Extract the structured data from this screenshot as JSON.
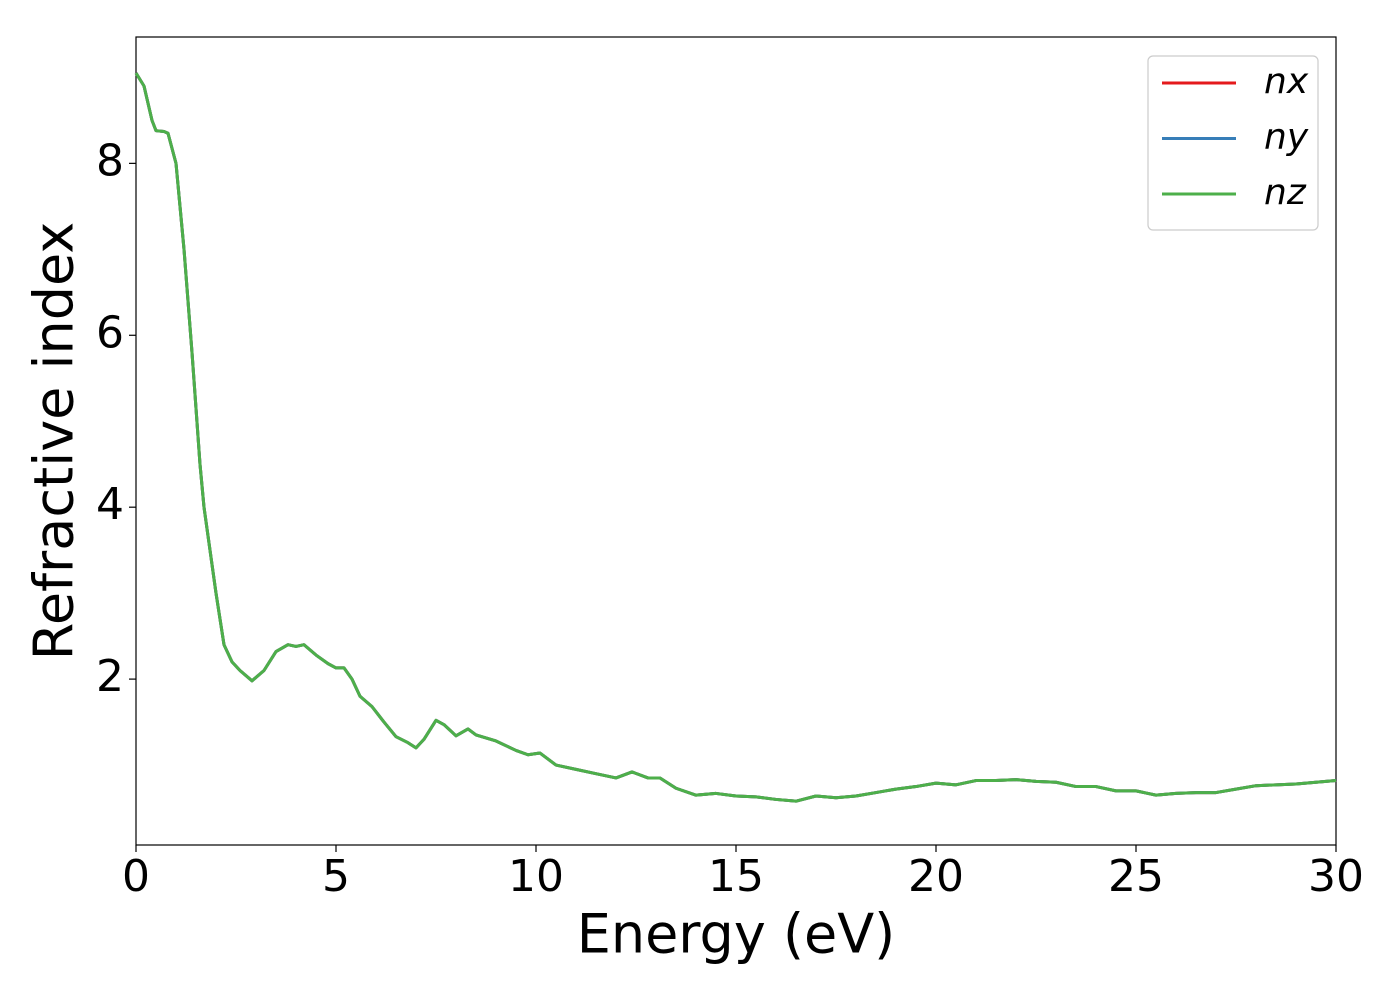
{
  "chart_data": {
    "type": "line",
    "xlabel": "Energy (eV)",
    "ylabel": "Refractive index",
    "x": [
      0,
      0.2,
      0.4,
      0.5,
      0.7,
      0.8,
      1.0,
      1.2,
      1.4,
      1.6,
      1.7,
      2.0,
      2.2,
      2.4,
      2.6,
      2.9,
      3.2,
      3.5,
      3.8,
      4.0,
      4.2,
      4.5,
      4.8,
      5.0,
      5.2,
      5.4,
      5.6,
      5.9,
      6.2,
      6.5,
      6.8,
      7.0,
      7.2,
      7.5,
      7.7,
      8.0,
      8.3,
      8.5,
      9.0,
      9.5,
      9.8,
      10.1,
      10.5,
      11,
      11.5,
      12,
      12.4,
      12.8,
      13.1,
      13.5,
      14,
      14.5,
      15,
      15.5,
      16,
      16.5,
      17,
      17.5,
      18,
      18.5,
      19,
      19.5,
      20,
      20.5,
      21,
      21.5,
      22,
      22.5,
      23,
      23.5,
      24,
      24.5,
      25,
      25.5,
      26,
      26.5,
      27,
      27.5,
      28,
      28.5,
      29,
      29.5,
      30
    ],
    "series": [
      {
        "name": "nx",
        "color": "#e41a1c",
        "values": [
          9.05,
          8.9,
          8.5,
          8.38,
          8.37,
          8.35,
          8.0,
          7.0,
          5.8,
          4.5,
          4.0,
          3.0,
          2.4,
          2.2,
          2.1,
          1.98,
          2.1,
          2.32,
          2.4,
          2.38,
          2.4,
          2.28,
          2.18,
          2.13,
          2.13,
          2.0,
          1.8,
          1.68,
          1.5,
          1.33,
          1.26,
          1.2,
          1.3,
          1.52,
          1.47,
          1.34,
          1.42,
          1.35,
          1.28,
          1.17,
          1.12,
          1.14,
          1.0,
          0.95,
          0.9,
          0.85,
          0.92,
          0.85,
          0.85,
          0.73,
          0.65,
          0.67,
          0.64,
          0.63,
          0.6,
          0.58,
          0.64,
          0.62,
          0.64,
          0.68,
          0.72,
          0.75,
          0.79,
          0.77,
          0.82,
          0.82,
          0.83,
          0.81,
          0.8,
          0.75,
          0.75,
          0.7,
          0.7,
          0.65,
          0.67,
          0.68,
          0.68,
          0.72,
          0.76,
          0.77,
          0.78,
          0.8,
          0.82
        ]
      },
      {
        "name": "ny",
        "color": "#377eb8",
        "values": [
          9.05,
          8.9,
          8.5,
          8.38,
          8.37,
          8.35,
          8.0,
          7.0,
          5.8,
          4.5,
          4.0,
          3.0,
          2.4,
          2.2,
          2.1,
          1.98,
          2.1,
          2.32,
          2.4,
          2.38,
          2.4,
          2.28,
          2.18,
          2.13,
          2.13,
          2.0,
          1.8,
          1.68,
          1.5,
          1.33,
          1.26,
          1.2,
          1.3,
          1.52,
          1.47,
          1.34,
          1.42,
          1.35,
          1.28,
          1.17,
          1.12,
          1.14,
          1.0,
          0.95,
          0.9,
          0.85,
          0.92,
          0.85,
          0.85,
          0.73,
          0.65,
          0.67,
          0.64,
          0.63,
          0.6,
          0.58,
          0.64,
          0.62,
          0.64,
          0.68,
          0.72,
          0.75,
          0.79,
          0.77,
          0.82,
          0.82,
          0.83,
          0.81,
          0.8,
          0.75,
          0.75,
          0.7,
          0.7,
          0.65,
          0.67,
          0.68,
          0.68,
          0.72,
          0.76,
          0.77,
          0.78,
          0.8,
          0.82
        ]
      },
      {
        "name": "nz",
        "color": "#4daf4a",
        "values": [
          9.05,
          8.9,
          8.5,
          8.38,
          8.37,
          8.35,
          8.0,
          7.0,
          5.8,
          4.5,
          4.0,
          3.0,
          2.4,
          2.2,
          2.1,
          1.98,
          2.1,
          2.32,
          2.4,
          2.38,
          2.4,
          2.28,
          2.18,
          2.13,
          2.13,
          2.0,
          1.8,
          1.68,
          1.5,
          1.33,
          1.26,
          1.2,
          1.3,
          1.52,
          1.47,
          1.34,
          1.42,
          1.35,
          1.28,
          1.17,
          1.12,
          1.14,
          1.0,
          0.95,
          0.9,
          0.85,
          0.92,
          0.85,
          0.85,
          0.73,
          0.65,
          0.67,
          0.64,
          0.63,
          0.6,
          0.58,
          0.64,
          0.62,
          0.64,
          0.68,
          0.72,
          0.75,
          0.79,
          0.77,
          0.82,
          0.82,
          0.83,
          0.81,
          0.8,
          0.75,
          0.75,
          0.7,
          0.7,
          0.65,
          0.67,
          0.68,
          0.68,
          0.72,
          0.76,
          0.77,
          0.78,
          0.8,
          0.82
        ]
      }
    ],
    "xlim": [
      0,
      30
    ],
    "xticks": [
      0,
      5,
      10,
      15,
      20,
      25,
      30
    ],
    "ylim": [
      0.07,
      9.47
    ],
    "yticks": [
      2,
      4,
      6,
      8
    ],
    "grid": false,
    "legend": "upper right"
  }
}
